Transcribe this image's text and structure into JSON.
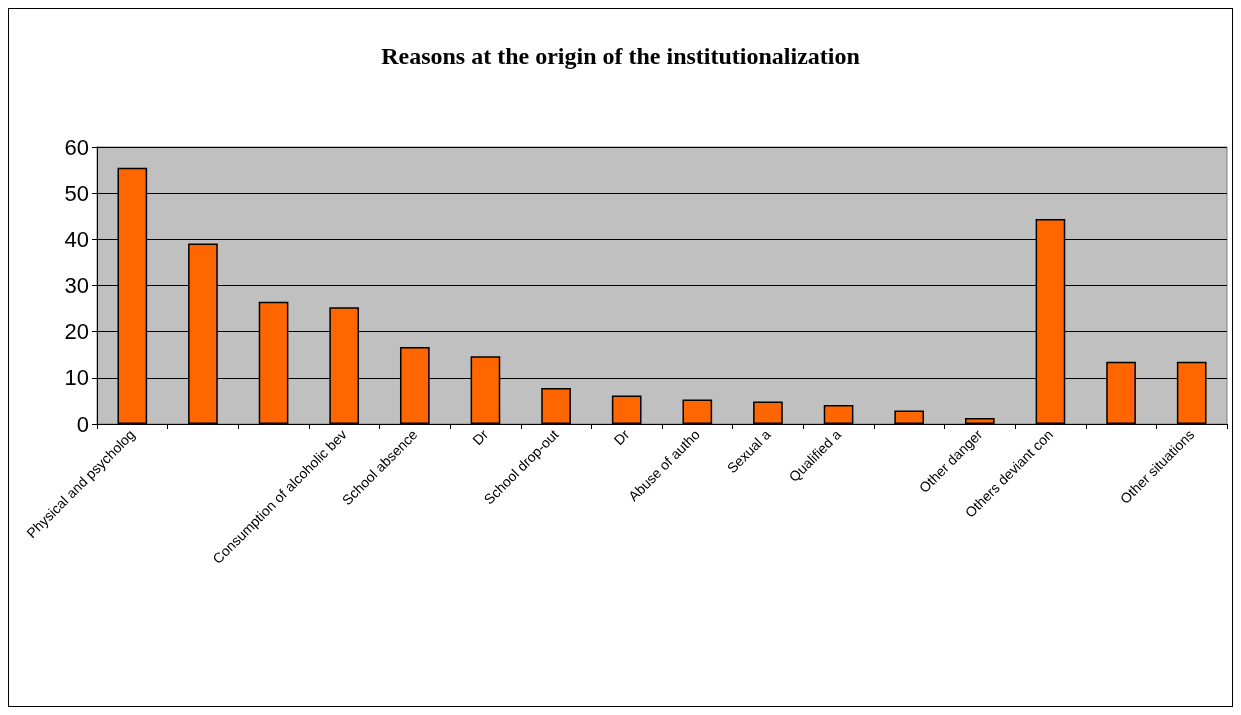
{
  "chart_data": {
    "type": "bar",
    "title": "Reasons at the origin of the institutionalization",
    "categories": [
      "Physical and psycholog",
      null,
      null,
      "Consumption of alcoholic bev",
      "School absence",
      "Dr",
      "School drop-out",
      "Dr",
      "Abuse of autho",
      "Sexual a",
      "Qualified a",
      null,
      "Other danger",
      "Others deviant con",
      null,
      "Other situations"
    ],
    "values": [
      55.5,
      39.1,
      26.5,
      25.3,
      16.7,
      14.7,
      7.8,
      6.2,
      5.3,
      4.9,
      4.1,
      2.9,
      1.3,
      44.4,
      13.5,
      13.5
    ],
    "color": "#ff6600",
    "ylim": [
      0,
      60
    ],
    "yticks": [
      0,
      10,
      20,
      30,
      40,
      50,
      60
    ],
    "grid": "y"
  }
}
